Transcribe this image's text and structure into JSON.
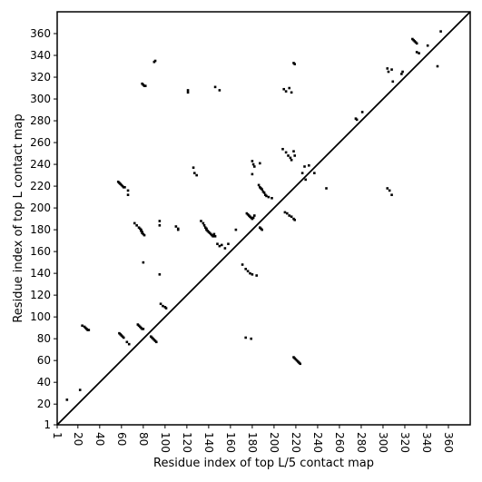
{
  "chart_data": {
    "type": "scatter",
    "title": "",
    "xlabel": "Residue index of top L/5 contact map",
    "ylabel": "Residue index of top L contact map",
    "xlim": [
      1,
      380
    ],
    "ylim": [
      1,
      380
    ],
    "xticks": [
      1,
      20,
      40,
      60,
      80,
      100,
      120,
      140,
      160,
      180,
      200,
      220,
      240,
      260,
      280,
      300,
      320,
      340,
      360
    ],
    "yticks": [
      1,
      20,
      40,
      60,
      80,
      100,
      120,
      140,
      160,
      180,
      200,
      220,
      240,
      260,
      280,
      300,
      320,
      340,
      360
    ],
    "diagonal": {
      "from": 1,
      "to": 380,
      "color": "#000000"
    },
    "point_color": "#000000",
    "grid": false,
    "legend": "none",
    "series": [
      {
        "values": [
          [
            10,
            24
          ],
          [
            22,
            33
          ],
          [
            24,
            92
          ],
          [
            26,
            91
          ],
          [
            27,
            90
          ],
          [
            28,
            89
          ],
          [
            29,
            88
          ],
          [
            30,
            88
          ],
          [
            57,
            224
          ],
          [
            58,
            223
          ],
          [
            59,
            222
          ],
          [
            60,
            221
          ],
          [
            61,
            220
          ],
          [
            62,
            219
          ],
          [
            63,
            219
          ],
          [
            66,
            216
          ],
          [
            66,
            212
          ],
          [
            58,
            85
          ],
          [
            59,
            84
          ],
          [
            60,
            83
          ],
          [
            61,
            82
          ],
          [
            62,
            81
          ],
          [
            65,
            77
          ],
          [
            67,
            75
          ],
          [
            72,
            186
          ],
          [
            74,
            184
          ],
          [
            76,
            182
          ],
          [
            77,
            181
          ],
          [
            78,
            180
          ],
          [
            78,
            179
          ],
          [
            79,
            178
          ],
          [
            79,
            177
          ],
          [
            80,
            176
          ],
          [
            81,
            175
          ],
          [
            80,
            150
          ],
          [
            79,
            314
          ],
          [
            80,
            313
          ],
          [
            81,
            312
          ],
          [
            82,
            312
          ],
          [
            75,
            93
          ],
          [
            76,
            92
          ],
          [
            77,
            91
          ],
          [
            78,
            90
          ],
          [
            79,
            89
          ],
          [
            80,
            89
          ],
          [
            87,
            82
          ],
          [
            88,
            81
          ],
          [
            89,
            80
          ],
          [
            90,
            79
          ],
          [
            91,
            78
          ],
          [
            92,
            77
          ],
          [
            90,
            334
          ],
          [
            91,
            335
          ],
          [
            95,
            188
          ],
          [
            95,
            184
          ],
          [
            95,
            139
          ],
          [
            96,
            112
          ],
          [
            98,
            110
          ],
          [
            100,
            109
          ],
          [
            101,
            108
          ],
          [
            110,
            183
          ],
          [
            112,
            181
          ],
          [
            112,
            180
          ],
          [
            121,
            308
          ],
          [
            121,
            306
          ],
          [
            126,
            237
          ],
          [
            127,
            232
          ],
          [
            129,
            230
          ],
          [
            133,
            188
          ],
          [
            135,
            186
          ],
          [
            136,
            184
          ],
          [
            137,
            182
          ],
          [
            138,
            181
          ],
          [
            138,
            180
          ],
          [
            139,
            179
          ],
          [
            140,
            178
          ],
          [
            141,
            177
          ],
          [
            142,
            176
          ],
          [
            143,
            175
          ],
          [
            144,
            174
          ],
          [
            145,
            176
          ],
          [
            146,
            174
          ],
          [
            146,
            311
          ],
          [
            150,
            308
          ],
          [
            148,
            167
          ],
          [
            150,
            165
          ],
          [
            152,
            166
          ],
          [
            155,
            163
          ],
          [
            158,
            167
          ],
          [
            165,
            180
          ],
          [
            171,
            148
          ],
          [
            174,
            144
          ],
          [
            176,
            142
          ],
          [
            178,
            140
          ],
          [
            180,
            139
          ],
          [
            184,
            138
          ],
          [
            175,
            195
          ],
          [
            176,
            194
          ],
          [
            177,
            193
          ],
          [
            178,
            192
          ],
          [
            179,
            191
          ],
          [
            180,
            190
          ],
          [
            181,
            191
          ],
          [
            182,
            193
          ],
          [
            180,
            243
          ],
          [
            181,
            240
          ],
          [
            182,
            238
          ],
          [
            187,
            241
          ],
          [
            180,
            231
          ],
          [
            174,
            81
          ],
          [
            179,
            80
          ],
          [
            186,
            221
          ],
          [
            187,
            219
          ],
          [
            188,
            218
          ],
          [
            189,
            217
          ],
          [
            190,
            215
          ],
          [
            191,
            214
          ],
          [
            192,
            212
          ],
          [
            193,
            211
          ],
          [
            195,
            210
          ],
          [
            198,
            209
          ],
          [
            187,
            182
          ],
          [
            188,
            181
          ],
          [
            189,
            180
          ],
          [
            208,
            254
          ],
          [
            211,
            251
          ],
          [
            213,
            248
          ],
          [
            215,
            246
          ],
          [
            216,
            244
          ],
          [
            218,
            252
          ],
          [
            219,
            248
          ],
          [
            209,
            309
          ],
          [
            211,
            307
          ],
          [
            214,
            310
          ],
          [
            216,
            306
          ],
          [
            218,
            333
          ],
          [
            219,
            332
          ],
          [
            210,
            196
          ],
          [
            212,
            195
          ],
          [
            214,
            193
          ],
          [
            216,
            192
          ],
          [
            218,
            190
          ],
          [
            219,
            189
          ],
          [
            218,
            63
          ],
          [
            219,
            62
          ],
          [
            220,
            61
          ],
          [
            221,
            60
          ],
          [
            222,
            59
          ],
          [
            223,
            58
          ],
          [
            224,
            57
          ],
          [
            226,
            232
          ],
          [
            228,
            238
          ],
          [
            229,
            226
          ],
          [
            232,
            239
          ],
          [
            237,
            232
          ],
          [
            248,
            218
          ],
          [
            275,
            282
          ],
          [
            276,
            281
          ],
          [
            281,
            288
          ],
          [
            304,
            328
          ],
          [
            305,
            325
          ],
          [
            308,
            327
          ],
          [
            309,
            316
          ],
          [
            317,
            323
          ],
          [
            318,
            325
          ],
          [
            304,
            218
          ],
          [
            306,
            216
          ],
          [
            308,
            212
          ],
          [
            327,
            355
          ],
          [
            328,
            354
          ],
          [
            329,
            353
          ],
          [
            330,
            352
          ],
          [
            331,
            351
          ],
          [
            331,
            343
          ],
          [
            333,
            342
          ],
          [
            341,
            349
          ],
          [
            350,
            330
          ],
          [
            353,
            362
          ]
        ]
      }
    ]
  }
}
